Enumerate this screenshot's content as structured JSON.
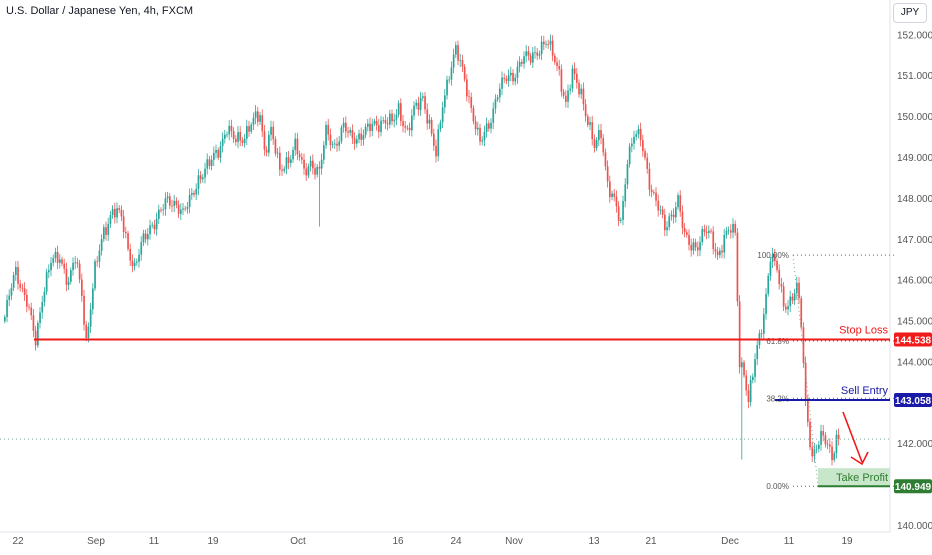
{
  "header": {
    "title": "U.S. Dollar / Japanese Yen, 4h, FXCM",
    "currency_button": "JPY"
  },
  "colors": {
    "up": "#26a69a",
    "down": "#ef5350",
    "stop": "#f01a1a",
    "entry": "#1a1aa8",
    "take_profit": "#2e7d32",
    "take_profit_bg": "#c8e6c9",
    "fib": "#2962ff",
    "current_price": "#7aaa9a"
  },
  "chart_data": {
    "type": "candlestick",
    "symbol": "U.S. Dollar / Japanese Yen",
    "timeframe": "4h",
    "ylim": [
      140.0,
      152.4
    ],
    "y_ticks": [
      "140.000",
      "141.000",
      "142.000",
      "143.000",
      "144.000",
      "145.000",
      "146.000",
      "147.000",
      "148.000",
      "149.000",
      "150.000",
      "151.000",
      "152.000"
    ],
    "x_ticks": [
      "22",
      "Sep",
      "11",
      "19",
      "Oct",
      "16",
      "24",
      "Nov",
      "13",
      "21",
      "Dec",
      "11",
      "19"
    ],
    "anchors": [
      [
        0,
        145.0
      ],
      [
        3,
        145.9
      ],
      [
        5,
        146.3
      ],
      [
        8,
        145.7
      ],
      [
        10,
        145.4
      ],
      [
        14,
        144.55
      ],
      [
        17,
        145.6
      ],
      [
        21,
        146.4
      ],
      [
        25,
        146.6
      ],
      [
        29,
        145.9
      ],
      [
        32,
        146.5
      ],
      [
        35,
        145.7
      ],
      [
        37,
        144.5
      ],
      [
        41,
        146.2
      ],
      [
        45,
        147.2
      ],
      [
        49,
        147.7
      ],
      [
        53,
        147.5
      ],
      [
        56,
        146.8
      ],
      [
        59,
        146.3
      ],
      [
        62,
        146.8
      ],
      [
        66,
        147.3
      ],
      [
        70,
        147.6
      ],
      [
        74,
        147.9
      ],
      [
        78,
        147.9
      ],
      [
        81,
        147.6
      ],
      [
        84,
        147.9
      ],
      [
        88,
        148.5
      ],
      [
        93,
        148.8
      ],
      [
        97,
        149.2
      ],
      [
        101,
        149.7
      ],
      [
        104,
        149.4
      ],
      [
        108,
        149.5
      ],
      [
        112,
        149.8
      ],
      [
        116,
        150.0
      ],
      [
        118,
        149.2
      ],
      [
        121,
        149.7
      ],
      [
        125,
        148.6
      ],
      [
        128,
        148.9
      ],
      [
        132,
        149.3
      ],
      [
        136,
        148.6
      ],
      [
        139,
        148.9
      ],
      [
        143,
        148.6
      ],
      [
        146,
        149.6
      ],
      [
        150,
        149.3
      ],
      [
        154,
        149.7
      ],
      [
        157,
        149.5
      ],
      [
        160,
        149.5
      ],
      [
        164,
        149.6
      ],
      [
        168,
        149.8
      ],
      [
        172,
        149.9
      ],
      [
        176,
        149.8
      ],
      [
        179,
        150.2
      ],
      [
        183,
        149.6
      ],
      [
        186,
        150.1
      ],
      [
        190,
        150.5
      ],
      [
        193,
        149.8
      ],
      [
        196,
        149.0
      ],
      [
        199,
        150.3
      ],
      [
        202,
        151.1
      ],
      [
        205,
        151.6
      ],
      [
        209,
        150.9
      ],
      [
        213,
        150.0
      ],
      [
        216,
        149.3
      ],
      [
        220,
        149.8
      ],
      [
        224,
        150.6
      ],
      [
        228,
        150.9
      ],
      [
        231,
        151.0
      ],
      [
        235,
        151.4
      ],
      [
        239,
        151.4
      ],
      [
        243,
        151.7
      ],
      [
        246,
        151.8
      ],
      [
        249,
        151.5
      ],
      [
        252,
        151.1
      ],
      [
        255,
        150.3
      ],
      [
        258,
        151.0
      ],
      [
        262,
        150.6
      ],
      [
        265,
        149.9
      ],
      [
        268,
        149.2
      ],
      [
        271,
        149.6
      ],
      [
        274,
        148.4
      ],
      [
        277,
        147.9
      ],
      [
        280,
        147.3
      ],
      [
        283,
        149.0
      ],
      [
        286,
        149.6
      ],
      [
        289,
        149.4
      ],
      [
        293,
        148.4
      ],
      [
        297,
        147.8
      ],
      [
        300,
        147.2
      ],
      [
        303,
        147.6
      ],
      [
        306,
        148.0
      ],
      [
        309,
        147.0
      ],
      [
        312,
        146.8
      ],
      [
        315,
        146.9
      ],
      [
        318,
        147.2
      ],
      [
        321,
        147.0
      ],
      [
        324,
        146.6
      ],
      [
        327,
        147.05
      ],
      [
        330,
        147.2
      ],
      [
        332,
        147.1
      ],
      [
        334,
        144.0
      ],
      [
        336,
        143.8
      ],
      [
        338,
        143.0
      ],
      [
        341,
        144.0
      ],
      [
        345,
        145.2
      ],
      [
        348,
        146.6
      ],
      [
        351,
        146.2
      ],
      [
        354,
        145.4
      ],
      [
        357,
        145.5
      ],
      [
        360,
        145.8
      ],
      [
        362,
        144.9
      ],
      [
        364,
        143.0
      ],
      [
        367,
        141.7
      ],
      [
        369,
        141.9
      ],
      [
        371,
        142.1
      ],
      [
        374,
        142.0
      ],
      [
        376,
        141.7
      ],
      [
        378,
        142.2
      ]
    ],
    "last_close": 142.1,
    "levels": [
      {
        "name": "Stop Loss",
        "value": 144.538,
        "label": "144.538"
      },
      {
        "name": "Sell Entry",
        "value": 143.058,
        "label": "143.058"
      },
      {
        "name": "Take Profit",
        "value": 140.949,
        "label": "140.949"
      }
    ],
    "fib_levels": [
      {
        "label": "100.00%",
        "value": 146.6
      },
      {
        "label": "61.8%",
        "value": 144.5
      },
      {
        "label": "38.2%",
        "value": 143.1
      },
      {
        "label": "0.00%",
        "value": 140.949
      }
    ]
  }
}
